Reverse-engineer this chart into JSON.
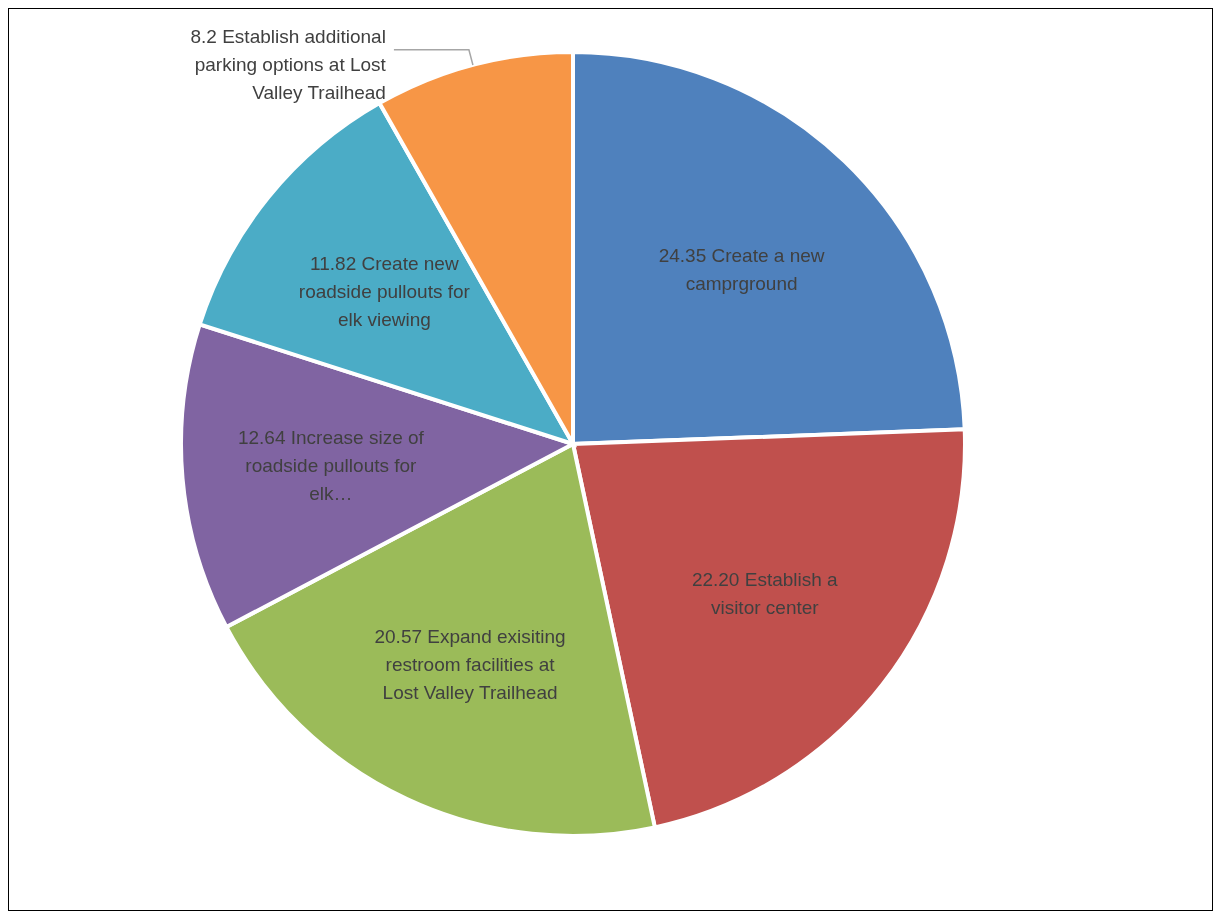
{
  "chart_data": {
    "type": "pie",
    "categories": [
      "Create a new camprground",
      "Establish a visitor center",
      "Expand exisiting restroom facilities at Lost Valley Trailhead",
      "Increase size of roadside pullouts for elk…",
      "Create new roadside pullouts for elk viewing",
      "Establish additional parking options at Lost Valley Trailhead"
    ],
    "values": [
      24.35,
      22.2,
      20.57,
      12.64,
      11.82,
      8.2
    ],
    "value_labels": [
      "24.35",
      "22.20",
      "20.57",
      "12.64",
      "11.82",
      "8.2"
    ],
    "colors": [
      "#4f81bd",
      "#c0504d",
      "#9bbb59",
      "#8064a2",
      "#4bacc6",
      "#f79646"
    ]
  }
}
